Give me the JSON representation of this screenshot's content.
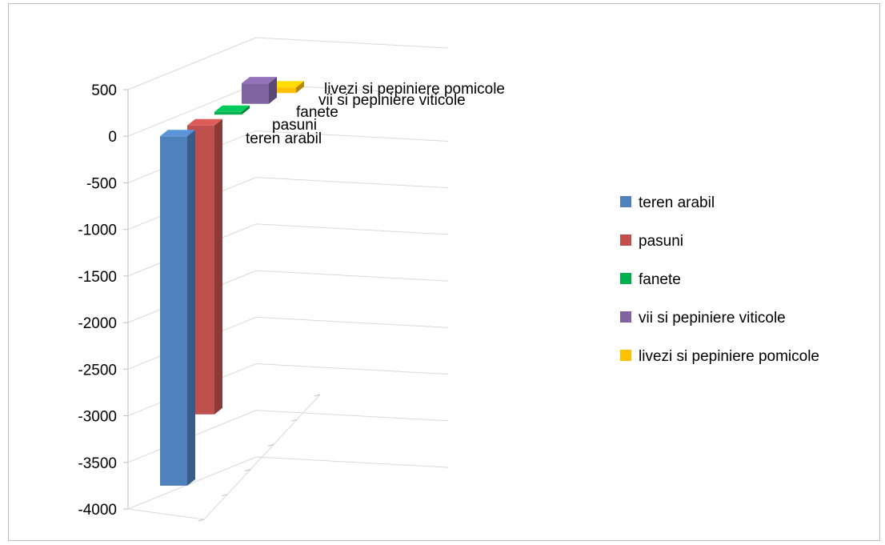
{
  "chart_data": {
    "type": "bar",
    "style": "3d-column",
    "categories": [
      "teren arabil",
      "pasuni",
      "fanete",
      "vii si pepiniere viticole",
      "livezi si pepiniere pomicole"
    ],
    "values": [
      -3750,
      -3100,
      30,
      220,
      60
    ],
    "colors": [
      "#4f81bd",
      "#c0504d",
      "#00b050",
      "#8064a2",
      "#ffc000"
    ],
    "yticks": [
      500,
      0,
      -500,
      -1000,
      -1500,
      -2000,
      -2500,
      -3000,
      -3500,
      -4000
    ],
    "ylim": [
      -4000,
      500
    ],
    "grid": true,
    "legend_position": "right",
    "legend": [
      "teren arabil",
      "pasuni",
      "fanete",
      "vii si pepiniere viticole",
      "livezi si pepiniere pomicole"
    ]
  }
}
